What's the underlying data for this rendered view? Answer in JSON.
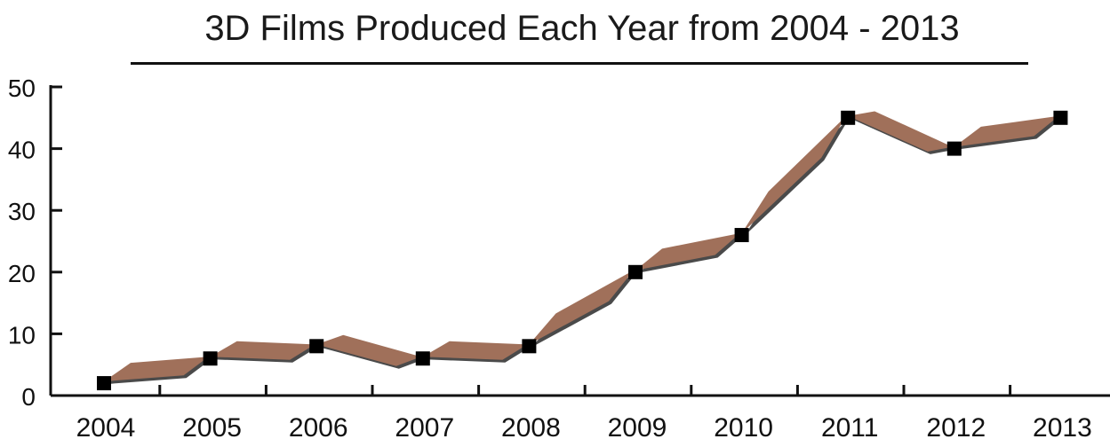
{
  "chart_data": {
    "type": "line",
    "title": "3D Films Produced Each Year from 2004 - 2013",
    "xlabel": "",
    "ylabel": "",
    "categories": [
      "2004",
      "2005",
      "2006",
      "2007",
      "2008",
      "2009",
      "2010",
      "2011",
      "2012",
      "2013"
    ],
    "series": [
      {
        "values": [
          2,
          6,
          8,
          6,
          8,
          20,
          26,
          45,
          40,
          45
        ]
      }
    ],
    "ylim": [
      0,
      50
    ],
    "yticks": [
      0,
      10,
      20,
      30,
      40,
      50
    ],
    "grid": false,
    "legend": "none",
    "colors": {
      "ribbon_face": "#a0705a",
      "ribbon_shadow": "#4a4a4a",
      "marker": "#000000",
      "axis": "#111111"
    }
  }
}
